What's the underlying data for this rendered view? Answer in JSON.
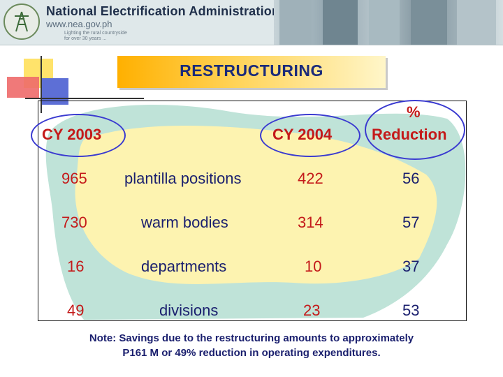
{
  "header": {
    "org_name": "National Electrification Administration",
    "url": "www.nea.gov.ph",
    "tagline_line1": "Lighting the rural countryside",
    "tagline_line2": "for over 30 years ..."
  },
  "title": "RESTRUCTURING",
  "table": {
    "col_headers": {
      "cy2003": "CY 2003",
      "cy2004": "CY 2004",
      "reduction_pct": "%",
      "reduction_word": "Reduction"
    },
    "rows": [
      {
        "cy2003": "965",
        "item": "plantilla positions",
        "cy2004": "422",
        "reduction": "56"
      },
      {
        "cy2003": "730",
        "item": "warm bodies",
        "cy2004": "314",
        "reduction": "57"
      },
      {
        "cy2003": "16",
        "item": "departments",
        "cy2004": "10",
        "reduction": "37"
      },
      {
        "cy2003": "49",
        "item": "divisions",
        "cy2004": "23",
        "reduction": "53"
      }
    ]
  },
  "note_line1": "Note: Savings due to the restructuring amounts to approximately",
  "note_line2": "P161 M or 49% reduction in operating expenditures.",
  "colors": {
    "red_text": "#c41a1a",
    "navy_text": "#1a1f6e",
    "teal_blob": "#bfe3d8",
    "yellow_blob": "#fdf3b0",
    "oval_blue": "#3a3ad0"
  }
}
